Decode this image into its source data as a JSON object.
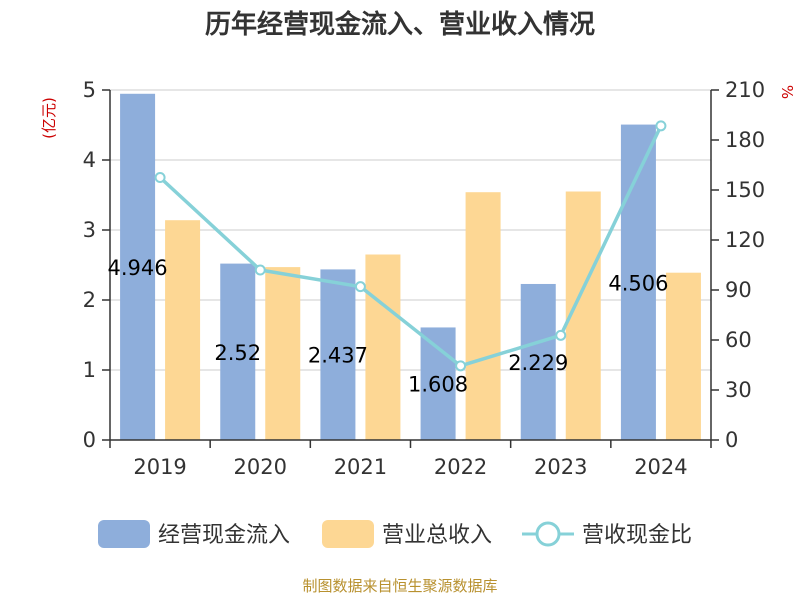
{
  "chart_data": {
    "type": "bar",
    "title": "历年经营现金流入、营业收入情况",
    "categories": [
      "2019",
      "2020",
      "2021",
      "2022",
      "2023",
      "2024"
    ],
    "series": [
      {
        "name": "经营现金流入",
        "type": "bar",
        "axis": "left",
        "color": "#8eaedb",
        "values": [
          4.946,
          2.52,
          2.437,
          1.608,
          2.229,
          4.506
        ],
        "labels": [
          "4.946",
          "2.52",
          "2.437",
          "1.608",
          "2.229",
          "4.506"
        ]
      },
      {
        "name": "营业总收入",
        "type": "bar",
        "axis": "left",
        "color": "#fdd794",
        "values": [
          3.14,
          2.47,
          2.65,
          3.54,
          3.55,
          2.39
        ]
      },
      {
        "name": "营收现金比",
        "type": "line",
        "axis": "right",
        "color": "#86d1d8",
        "values": [
          157.5,
          102,
          92,
          44.5,
          62.8,
          188.5
        ]
      }
    ],
    "y_left": {
      "label": "(亿元)",
      "ylim": [
        0,
        5
      ],
      "ticks": [
        "0",
        "1",
        "2",
        "3",
        "4",
        "5"
      ]
    },
    "y_right": {
      "label": "%",
      "ylim": [
        0,
        210
      ],
      "ticks": [
        "0",
        "30",
        "60",
        "90",
        "120",
        "150",
        "180",
        "210"
      ]
    },
    "grid": true,
    "legend_position": "bottom",
    "source": "制图数据来自恒生聚源数据库"
  }
}
